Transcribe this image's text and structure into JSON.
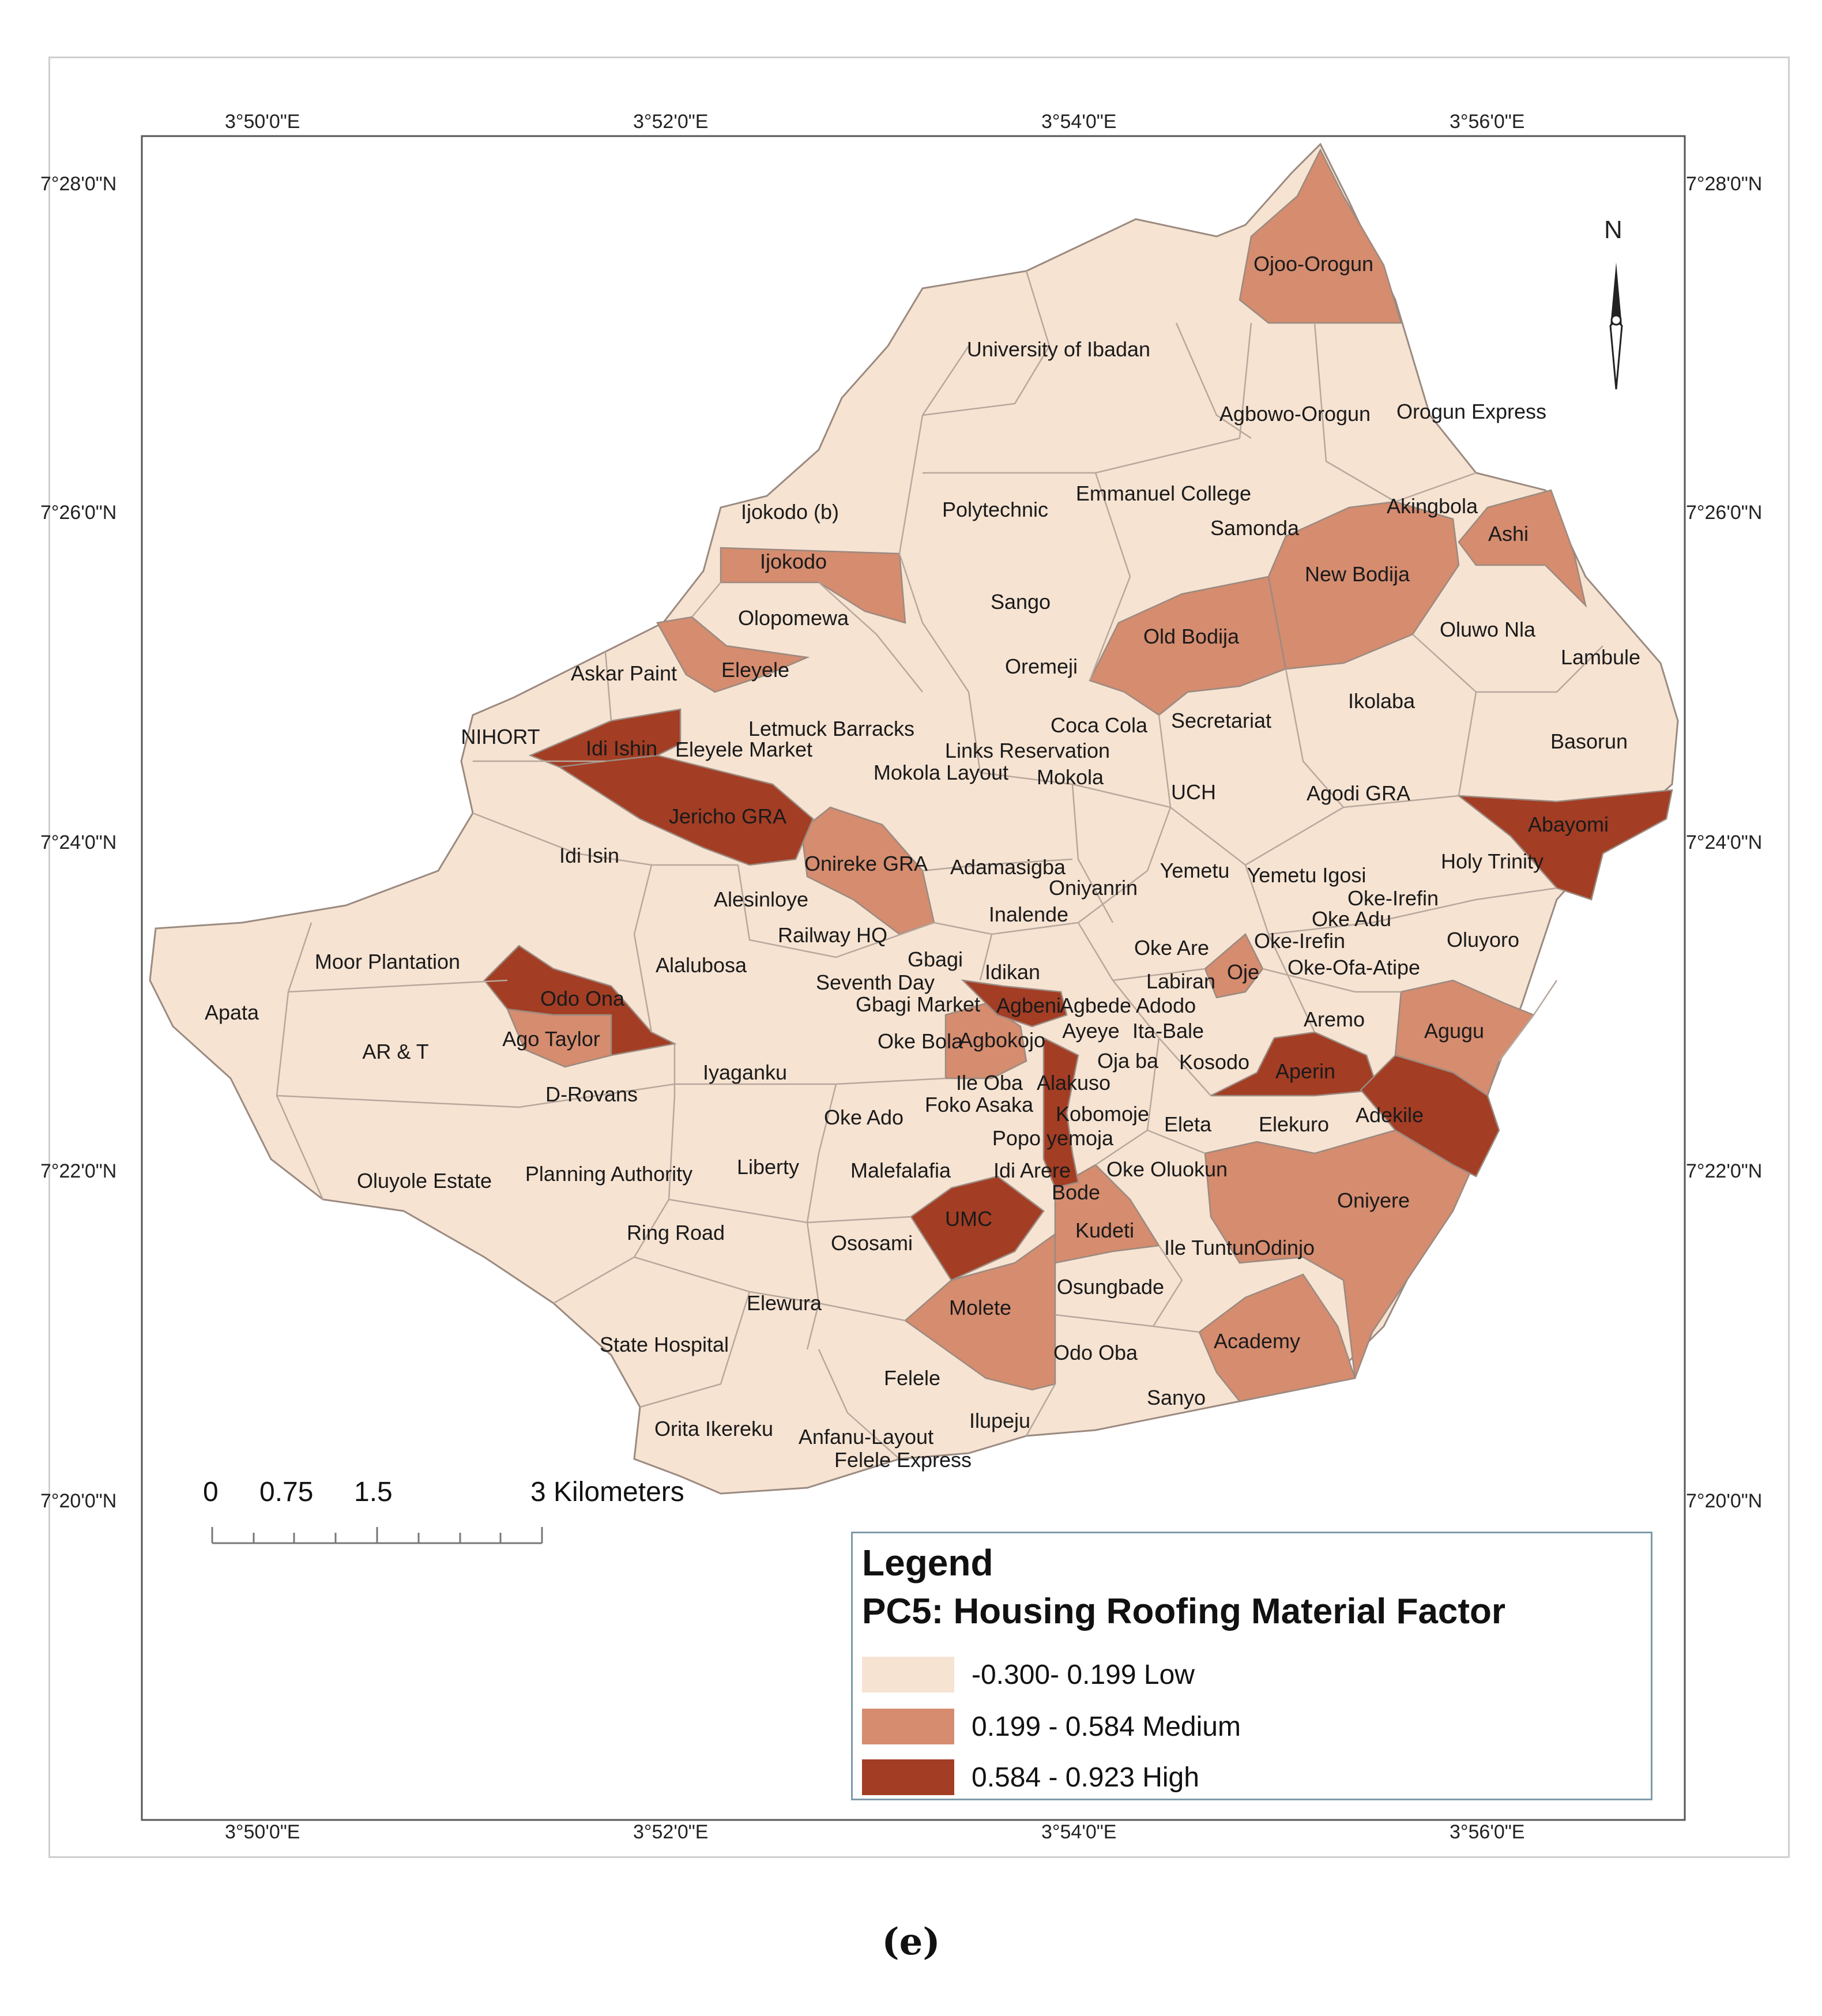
{
  "coords": {
    "lon_labels": [
      "3°50'0\"E",
      "3°52'0\"E",
      "3°54'0\"E",
      "3°56'0\"E"
    ],
    "lat_labels": [
      "7°28'0\"N",
      "7°26'0\"N",
      "7°24'0\"N",
      "7°22'0\"N",
      "7°20'0\"N"
    ]
  },
  "north_arrow": {
    "letter": "N",
    "icon": "north-arrow-icon"
  },
  "scale_bar": {
    "labels": [
      "0",
      "0.75",
      "1.5",
      "3 Kilometers"
    ]
  },
  "legend": {
    "title": "Legend",
    "subtitle": "PC5:  Housing Roofing Material Factor",
    "classes": [
      {
        "label": "-0.300- 0.199 Low",
        "color": "#f6e3d2"
      },
      {
        "label": "0.199 - 0.584 Medium",
        "color": "#d58c6f"
      },
      {
        "label": "0.584 - 0.923 High",
        "color": "#a33d24"
      }
    ]
  },
  "caption": "(e)",
  "regions": {
    "medium": [
      "Ojoo-Orogun",
      "Ashi",
      "New Bodija",
      "Old Bodija",
      "Ijokodo",
      "Eleyele",
      "Onireke GRA",
      "Ago Taylor",
      "Agbokojo",
      "Oje",
      "Agugu",
      "Oniyere",
      "Academy",
      "Molete",
      "Kudeti"
    ],
    "high": [
      "Idi Ishin",
      "Jericho GRA",
      "Odo Ona",
      "Abayomi",
      "Agbeni",
      "Aperin",
      "Adekile",
      "UMC",
      "Alakuso"
    ]
  },
  "place_labels": [
    "Ojoo-Orogun",
    "University of Ibadan",
    "Agbowo-Orogun",
    "Orogun Express",
    "Ijokodo (b)",
    "Polytechnic",
    "Emmanuel College",
    "Akingbola",
    "Samonda",
    "Ashi",
    "Ijokodo",
    "New Bodija",
    "Sango",
    "Olopomewa",
    "Old Bodija",
    "Oluwo Nla",
    "Askar Paint",
    "Eleyele",
    "Oremeji",
    "Lambule",
    "Ikolaba",
    "Letmuck Barracks",
    "Coca Cola",
    "Secretariat",
    "NIHORT",
    "Idi Ishin",
    "Eleyele Market",
    "Links Reservation",
    "Basorun",
    "Mokola Layout",
    "Mokola",
    "UCH",
    "Agodi GRA",
    "Abayomi",
    "Jericho GRA",
    "Idi Isin",
    "Onireke GRA",
    "Adamasigba",
    "Yemetu",
    "Yemetu Igosi",
    "Holy Trinity",
    "Oniyanrin",
    "Alesinloye",
    "Oke-Irefin",
    "Inalende",
    "Oke Adu",
    "Railway HQ",
    "Oke Are",
    "Oke-Irefin",
    "Oluyoro",
    "Moor Plantation",
    "Gbagi",
    "Alalubosa",
    "Idikan",
    "Oje",
    "Oke-Ofa-Atipe",
    "Seventh Day",
    "Labiran",
    "Odo Ona",
    "Gbagi Market",
    "Agbeni",
    "Agbede Adodo",
    "Aremo",
    "Apata",
    "Ayeye",
    "Ita-Bale",
    "Agugu",
    "Ago Taylor",
    "Agbokojo",
    "Oke Bola",
    "AR & T",
    "Oja ba",
    "Kosodo",
    "Aperin",
    "Iyaganku",
    "Ile Oba",
    "Alakuso",
    "D-Rovans",
    "Foko Asaka",
    "Kobomoje",
    "Adekile",
    "Oke Ado",
    "Eleta",
    "Elekuro",
    "Popo yemoja",
    "Planning Authority",
    "Liberty",
    "Malefalafia",
    "Idi Arere",
    "Oke Oluokun",
    "Oluyole Estate",
    "Bode",
    "Oniyere",
    "UMC",
    "Ring Road",
    "Kudeti",
    "Ososami",
    "Ile Tuntun",
    "Odinjo",
    "Osungbade",
    "Elewura",
    "Molete",
    "Academy",
    "State Hospital",
    "Odo Oba",
    "Felele",
    "Sanyo",
    "Ilupeju",
    "Orita Ikereku",
    "Anfanu-Layout",
    "Felele Express"
  ]
}
